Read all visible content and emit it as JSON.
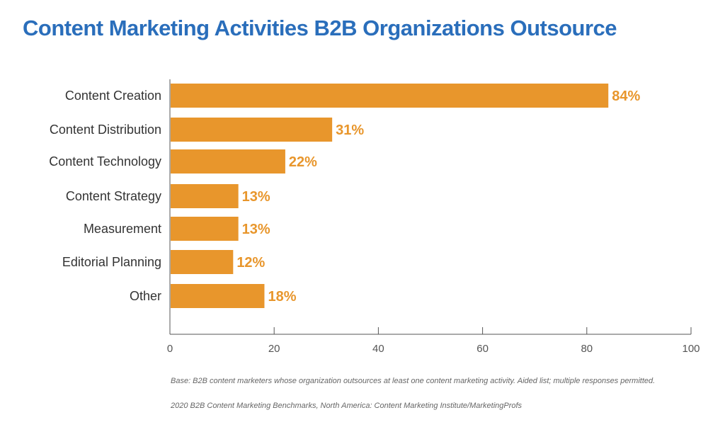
{
  "chart_data": {
    "type": "bar",
    "orientation": "horizontal",
    "title": "Content Marketing Activities B2B Organizations Outsource",
    "categories": [
      "Content Creation",
      "Content Distribution",
      "Content Technology",
      "Content Strategy",
      "Measurement",
      "Editorial Planning",
      "Other"
    ],
    "values": [
      84,
      31,
      22,
      13,
      13,
      12,
      18
    ],
    "data_labels": [
      "84%",
      "31%",
      "22%",
      "13%",
      "13%",
      "12%",
      "18%"
    ],
    "xlim": [
      0,
      100
    ],
    "xticks": [
      "0",
      "20",
      "40",
      "60",
      "80",
      "100"
    ],
    "xlabel": "",
    "ylabel": "",
    "grid": false,
    "colors": {
      "bar": "#e8962c",
      "label": "#e8962c",
      "title": "#2a6ebb"
    }
  },
  "footnotes": {
    "base": "Base: B2B content marketers whose organization outsources at least one content marketing activity. Aided list; multiple responses permitted.",
    "source": "2020 B2B Content Marketing Benchmarks, North America: Content Marketing Institute/MarketingProfs"
  }
}
